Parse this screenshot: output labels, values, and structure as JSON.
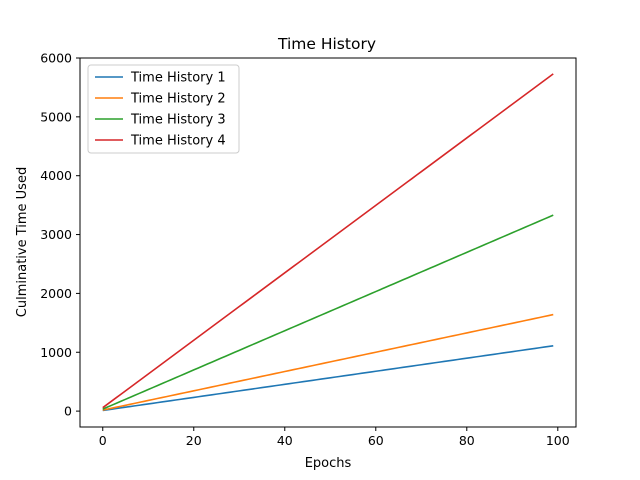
{
  "chart_data": {
    "type": "line",
    "title": "Time History",
    "xlabel": "Epochs",
    "ylabel": "Culminative Time Used",
    "xlim": [
      -5,
      104
    ],
    "ylim": [
      -270,
      6000
    ],
    "xticks": [
      0,
      20,
      40,
      60,
      80,
      100
    ],
    "yticks": [
      0,
      1000,
      2000,
      3000,
      4000,
      5000,
      6000
    ],
    "grid": false,
    "legend_position": "upper-left",
    "x_range": [
      0,
      99
    ],
    "series": [
      {
        "name": "Time History 1",
        "color": "#1f77b4",
        "start": 11,
        "end": 1110
      },
      {
        "name": "Time History 2",
        "color": "#ff7f0e",
        "start": 17,
        "end": 1640
      },
      {
        "name": "Time History 3",
        "color": "#2ca02c",
        "start": 34,
        "end": 3330
      },
      {
        "name": "Time History 4",
        "color": "#d62728",
        "start": 58,
        "end": 5730
      }
    ]
  }
}
